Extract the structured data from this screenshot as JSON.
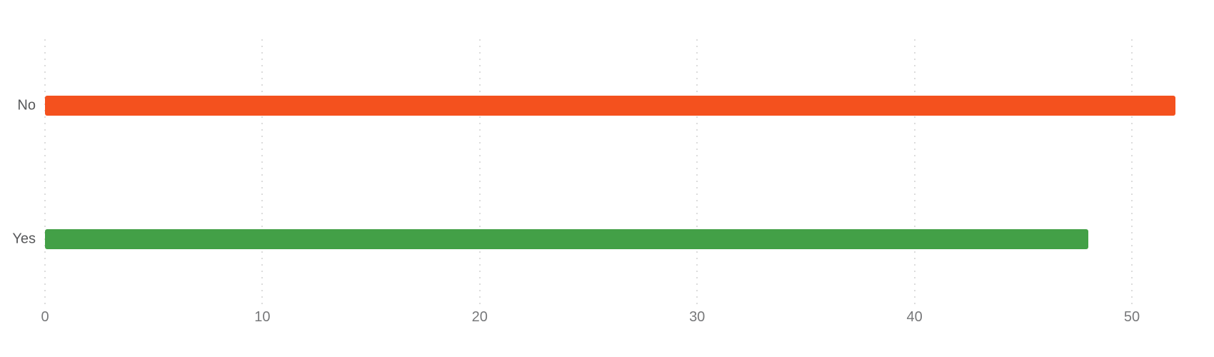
{
  "chart_data": {
    "type": "bar",
    "orientation": "horizontal",
    "title": "",
    "categories": [
      "No",
      "Yes"
    ],
    "values": [
      52,
      48
    ],
    "bar_colors": [
      "#f4511e",
      "#43a047"
    ],
    "x_ticks": [
      0,
      10,
      20,
      30,
      40,
      50
    ],
    "xlim": [
      0,
      53.8
    ],
    "ylabel": "",
    "xlabel": "",
    "legend": "none",
    "grid": "vertical-dotted",
    "colors": {
      "background": "#ffffff",
      "gridline": "#dcdcdc",
      "category_label": "#58595b",
      "tick_label": "#77787a"
    }
  }
}
